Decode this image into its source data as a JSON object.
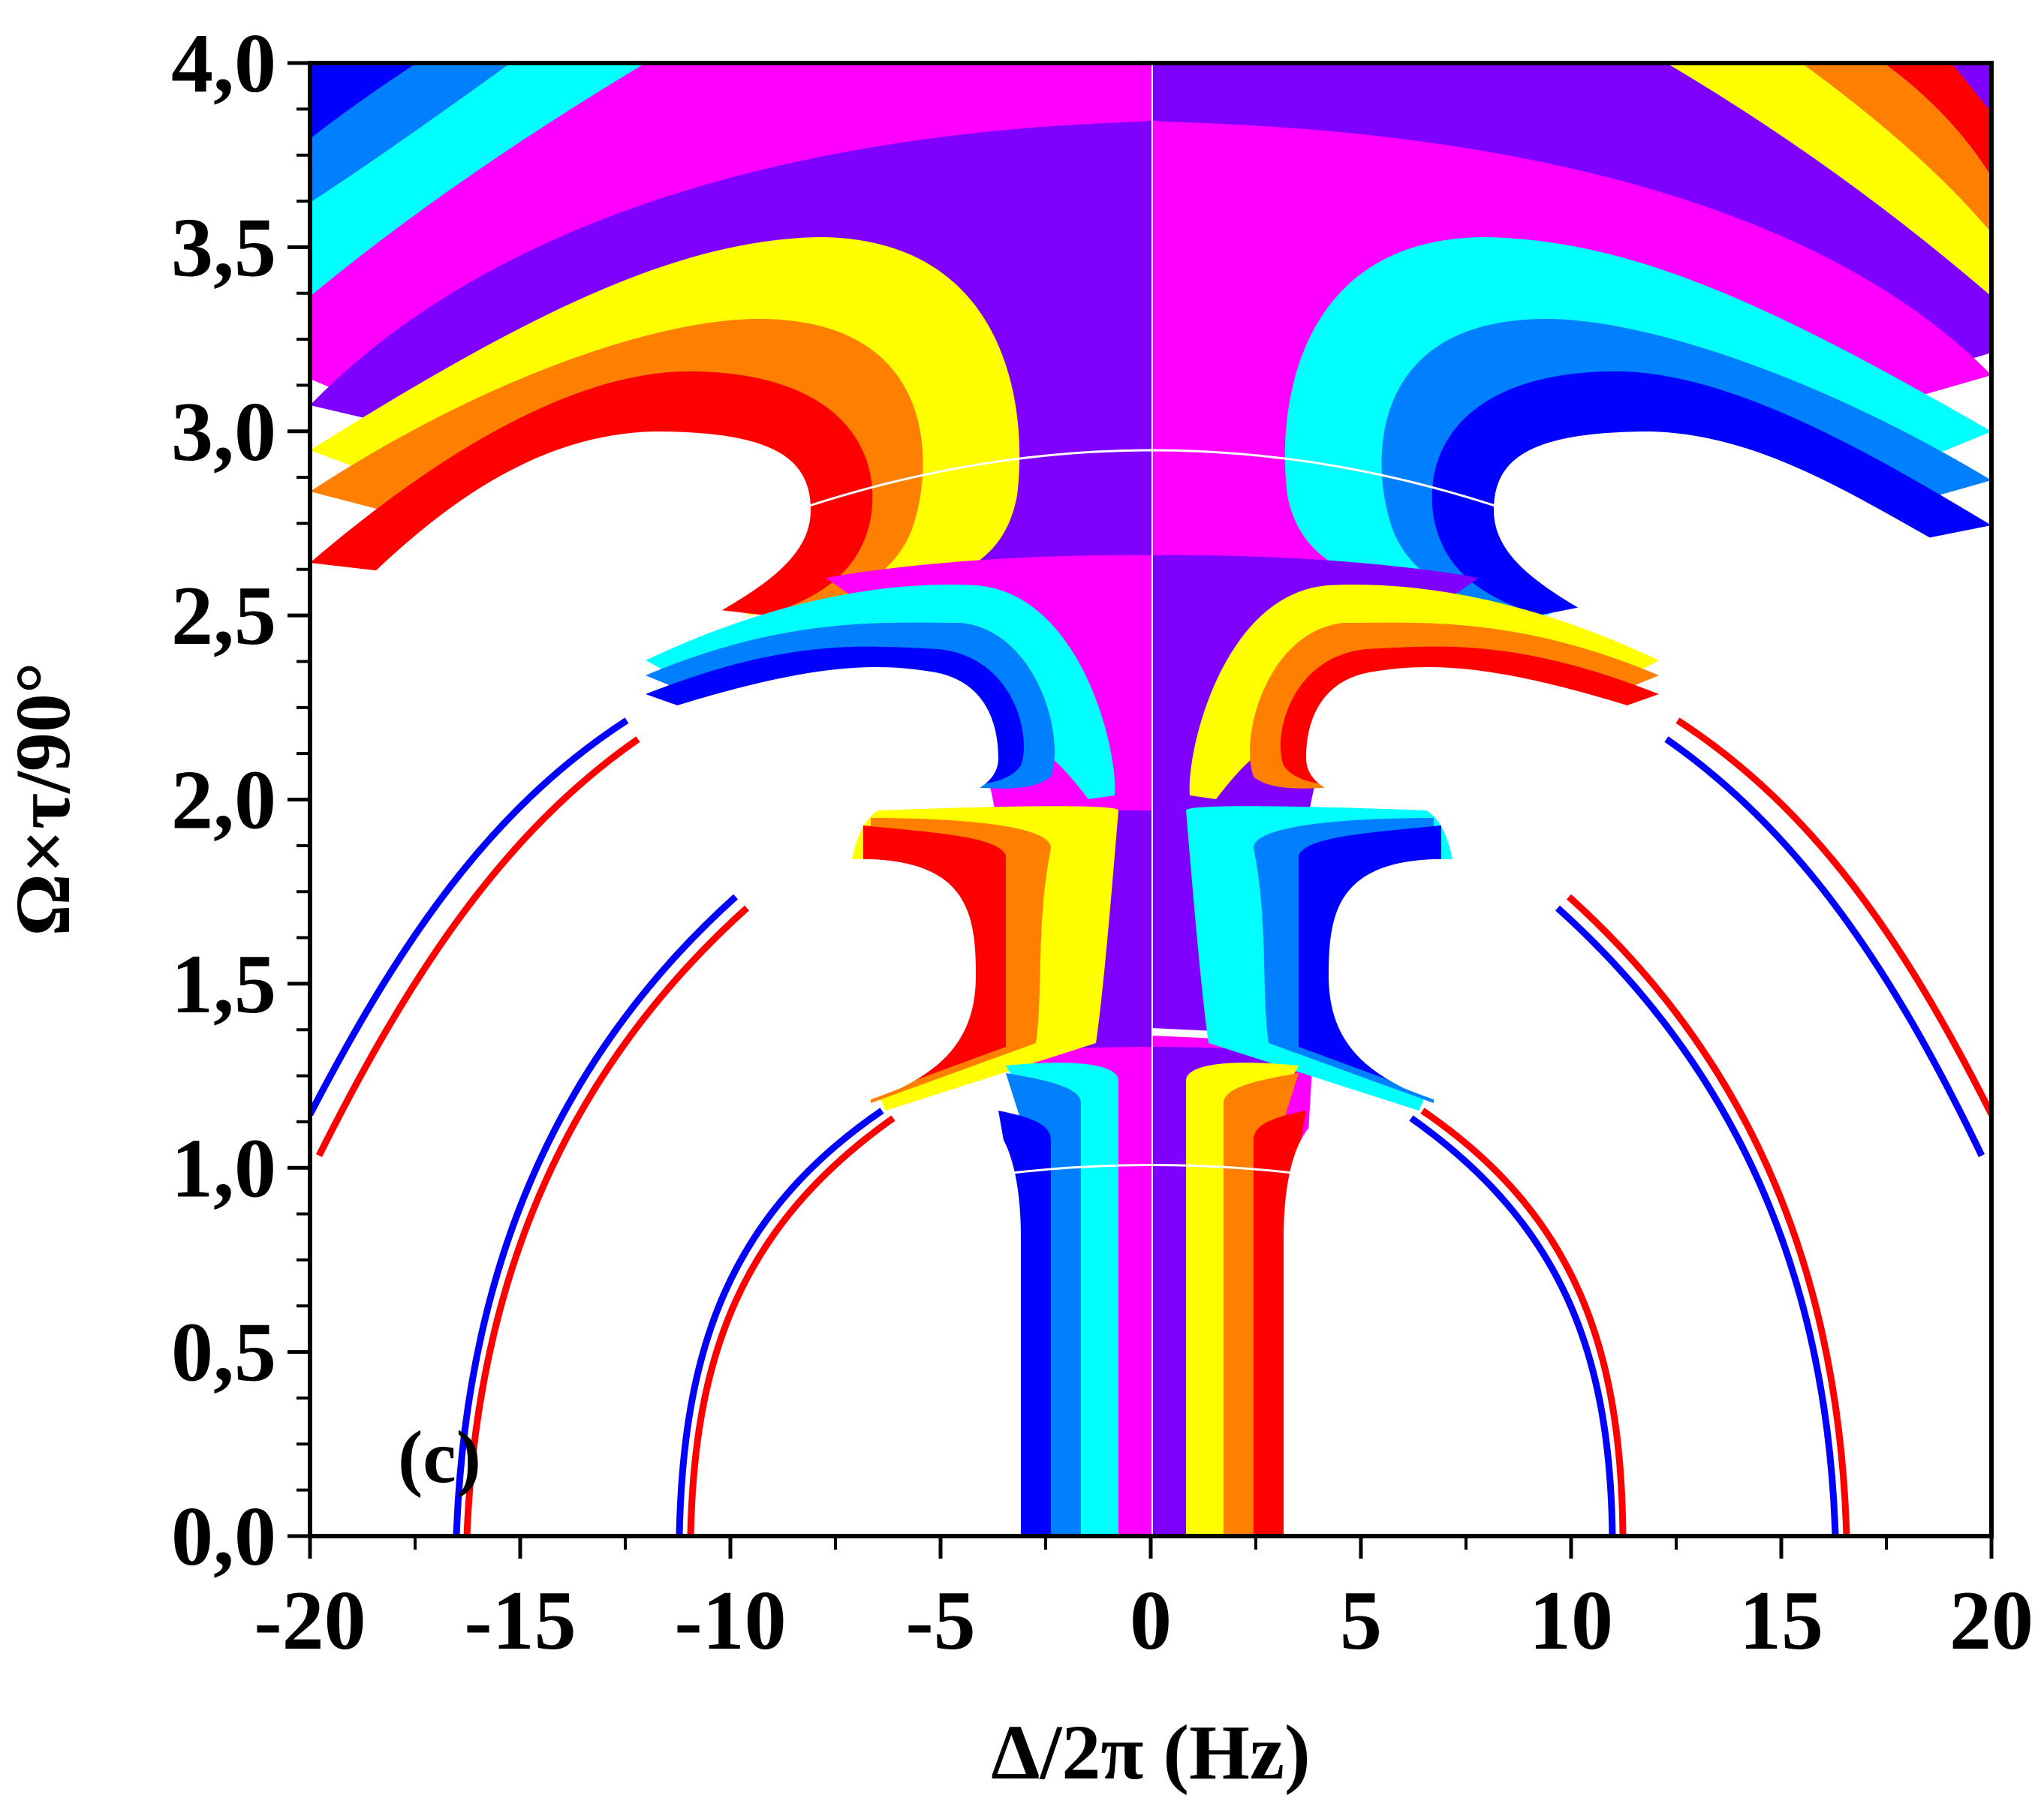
{
  "chart_data": {
    "type": "heatmap",
    "title": "",
    "panel_label": "(c)",
    "xlabel": "Δ/2π (Hz)",
    "ylabel": "Ω×τ/90°",
    "xlim": [
      -20,
      20
    ],
    "ylim": [
      0,
      4
    ],
    "x_ticks": [
      -20,
      -15,
      -10,
      -5,
      0,
      5,
      10,
      15,
      20
    ],
    "x_tick_labels": [
      "-20",
      "-15",
      "-10",
      "-5",
      "0",
      "5",
      "10",
      "15",
      "20"
    ],
    "y_ticks": [
      0,
      0.5,
      1,
      1.5,
      2,
      2.5,
      3,
      3.5,
      4
    ],
    "y_tick_labels": [
      "0,0",
      "0,5",
      "1,0",
      "1,5",
      "2,0",
      "2,5",
      "3,0",
      "3,5",
      "4,0"
    ],
    "grid": false,
    "legend": "none",
    "colormap": [
      "#0000ff",
      "#0080ff",
      "#00ffff",
      "#ff00ff",
      "#8000ff",
      "#ffff00",
      "#ff8000",
      "#ff0000"
    ],
    "background_color": "#ffffff"
  }
}
